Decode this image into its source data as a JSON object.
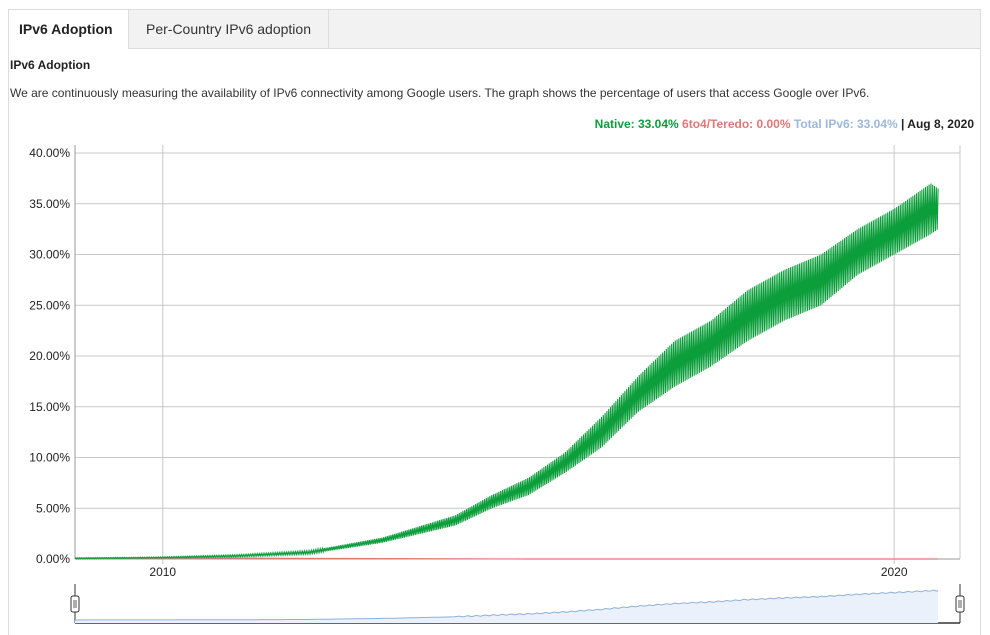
{
  "tabs": [
    {
      "label": "IPv6 Adoption",
      "active": true
    },
    {
      "label": "Per-Country IPv6 adoption",
      "active": false
    }
  ],
  "section": {
    "title": "IPv6 Adoption",
    "description": "We are continuously measuring the availability of IPv6 connectivity among Google users. The graph shows the percentage of users that access Google over IPv6."
  },
  "legend": {
    "native": "Native: 33.04%",
    "teredo": "6to4/Teredo: 0.00%",
    "total": "Total IPv6: 33.04%",
    "separator": " | ",
    "date": "Aug 8, 2020"
  },
  "colors": {
    "native": "#0d9e3c",
    "teredo": "#e07777",
    "total": "#9bb8db",
    "grid": "#c8c8c8",
    "navigator_fill": "#eaf1fb",
    "navigator_line": "#8fb0d9"
  },
  "chart_data": {
    "type": "area",
    "title": "",
    "xlabel": "",
    "ylabel": "",
    "x_ticks": [
      "2010",
      "2020"
    ],
    "y_ticks": [
      "0.00%",
      "5.00%",
      "10.00%",
      "15.00%",
      "20.00%",
      "25.00%",
      "30.00%",
      "35.00%",
      "40.00%"
    ],
    "xlim": [
      2008.8,
      2020.9
    ],
    "ylim": [
      0,
      40
    ],
    "grid": true,
    "legend_position": "top-right",
    "series": [
      {
        "name": "Native",
        "weekly_oscillation": true,
        "points": [
          {
            "x": 2008.8,
            "low": 0.0,
            "high": 0.1
          },
          {
            "x": 2010.0,
            "low": 0.1,
            "high": 0.2
          },
          {
            "x": 2011.0,
            "low": 0.2,
            "high": 0.4
          },
          {
            "x": 2012.0,
            "low": 0.5,
            "high": 0.8
          },
          {
            "x": 2013.0,
            "low": 1.6,
            "high": 2.1
          },
          {
            "x": 2014.0,
            "low": 3.3,
            "high": 4.3
          },
          {
            "x": 2014.5,
            "low": 5.0,
            "high": 6.3
          },
          {
            "x": 2015.0,
            "low": 6.3,
            "high": 8.0
          },
          {
            "x": 2015.5,
            "low": 8.5,
            "high": 10.5
          },
          {
            "x": 2016.0,
            "low": 11.0,
            "high": 14.0
          },
          {
            "x": 2016.5,
            "low": 14.5,
            "high": 18.0
          },
          {
            "x": 2017.0,
            "low": 17.0,
            "high": 21.5
          },
          {
            "x": 2017.5,
            "low": 19.0,
            "high": 23.5
          },
          {
            "x": 2018.0,
            "low": 21.5,
            "high": 26.5
          },
          {
            "x": 2018.5,
            "low": 23.5,
            "high": 28.5
          },
          {
            "x": 2019.0,
            "low": 25.0,
            "high": 30.0
          },
          {
            "x": 2019.5,
            "low": 28.0,
            "high": 32.5
          },
          {
            "x": 2020.0,
            "low": 30.0,
            "high": 34.5
          },
          {
            "x": 2020.5,
            "low": 32.0,
            "high": 37.0
          },
          {
            "x": 2020.6,
            "low": 32.5,
            "high": 36.5
          }
        ]
      },
      {
        "name": "6to4/Teredo",
        "points": [
          {
            "x": 2008.8,
            "value": 0.1
          },
          {
            "x": 2010.0,
            "value": 0.1
          },
          {
            "x": 2015.0,
            "value": 0.0
          },
          {
            "x": 2020.6,
            "value": 0.0
          }
        ]
      }
    ]
  }
}
